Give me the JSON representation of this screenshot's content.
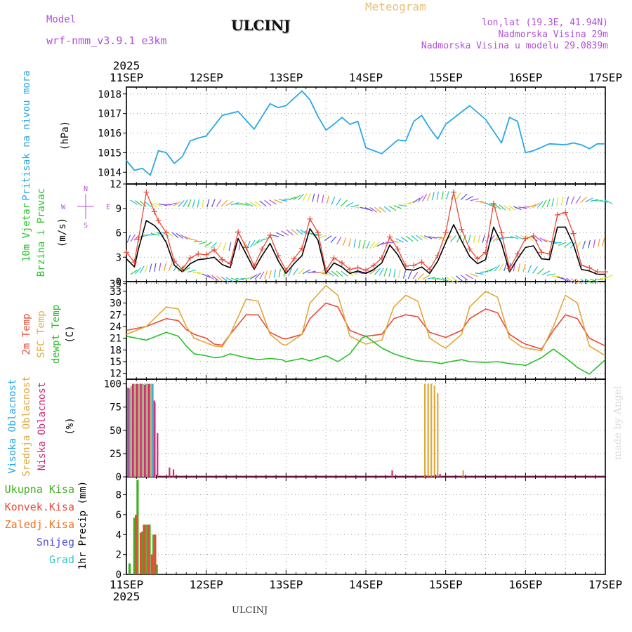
{
  "header": {
    "model_label": "Model",
    "model_name": "wrf-nmm_v3.9.1 e3km",
    "station": "ULCINJ",
    "meteogram": "Meteogram",
    "coords": "lon,lat (19.3E, 41.94N)",
    "elevation": "Nadmorska Visina 29m",
    "model_elevation": "Nadmorska Visina u modelu 29.0839m"
  },
  "credit": "made by Angel",
  "footer_station": "ULCINJ",
  "colors": {
    "pressure": "#29a8e8",
    "temp2m": "#e84a3a",
    "sfc_temp": "#e0a838",
    "dewpoint": "#28c028",
    "wind_speed": "#000000",
    "gust": "#e84a3a",
    "cloud_high": "#29a8e8",
    "cloud_mid": "#e0a838",
    "cloud_low": "#d02878",
    "precip_total": "#40b020",
    "precip_conv": "#e84a3a",
    "precip_frz": "#f07020",
    "snow": "#5050e0",
    "hail": "#30c8c8"
  },
  "chart_data": [
    {
      "type": "line",
      "panel": "pressure",
      "ylabel": [
        "Pritisak na nivou mora",
        "(hPa)"
      ],
      "ylim": [
        1013.4,
        1018.35
      ],
      "yticks": [
        1014,
        1015,
        1016,
        1017,
        1018
      ],
      "x_labels": [
        "11SEP",
        "12SEP",
        "13SEP",
        "14SEP",
        "15SEP",
        "16SEP",
        "17SEP"
      ],
      "year_label": "2025",
      "x_days": [
        0,
        0.1,
        0.2,
        0.3,
        0.4,
        0.5,
        0.6,
        0.7,
        0.8,
        0.9,
        1.0,
        1.2,
        1.4,
        1.6,
        1.8,
        1.9,
        2.0,
        2.2,
        2.3,
        2.4,
        2.5,
        2.6,
        2.7,
        2.8,
        2.9,
        3.0,
        3.2,
        3.4,
        3.5,
        3.6,
        3.7,
        3.8,
        3.9,
        4.0,
        4.3,
        4.5,
        4.7,
        4.8,
        4.9,
        5.0,
        5.1,
        5.3,
        5.5,
        5.6,
        5.7,
        5.8,
        5.9,
        6.0
      ],
      "series": [
        {
          "name": "Pritisak na nivou mora",
          "color_key": "pressure",
          "values": [
            1014.6,
            1014.1,
            1014.2,
            1013.85,
            1015.1,
            1015.0,
            1014.45,
            1014.8,
            1015.6,
            1015.75,
            1015.85,
            1016.9,
            1017.1,
            1016.2,
            1017.5,
            1017.3,
            1017.4,
            1018.15,
            1017.7,
            1016.85,
            1016.15,
            1016.45,
            1016.8,
            1016.45,
            1016.6,
            1015.25,
            1014.95,
            1015.65,
            1015.6,
            1016.6,
            1016.9,
            1016.25,
            1015.7,
            1016.45,
            1017.4,
            1016.7,
            1015.5,
            1016.8,
            1016.6,
            1015.0,
            1015.1,
            1015.45,
            1015.4,
            1015.5,
            1015.4,
            1015.2,
            1015.45,
            1015.45
          ]
        }
      ]
    },
    {
      "type": "line",
      "panel": "wind",
      "ylabel": [
        "10m Vjetar",
        "Brzina i Pravac",
        "(m/s)"
      ],
      "ylim": [
        0,
        12
      ],
      "yticks": [
        0,
        3,
        6,
        9,
        12
      ],
      "direction_legend": [
        "N",
        "W",
        "E",
        "S"
      ],
      "x_days": [
        0,
        0.1,
        0.15,
        0.25,
        0.35,
        0.4,
        0.5,
        0.6,
        0.7,
        0.8,
        0.9,
        1.0,
        1.1,
        1.2,
        1.3,
        1.4,
        1.5,
        1.6,
        1.7,
        1.8,
        1.9,
        2.0,
        2.1,
        2.2,
        2.3,
        2.4,
        2.5,
        2.6,
        2.7,
        2.8,
        2.9,
        3.0,
        3.1,
        3.2,
        3.3,
        3.4,
        3.5,
        3.6,
        3.7,
        3.8,
        3.9,
        4.0,
        4.1,
        4.2,
        4.3,
        4.4,
        4.5,
        4.6,
        4.7,
        4.8,
        4.9,
        5.0,
        5.1,
        5.2,
        5.3,
        5.4,
        5.5,
        5.6,
        5.7,
        5.8,
        5.9,
        6.0
      ],
      "series": [
        {
          "name": "Brzina",
          "color_key": "wind_speed",
          "values": [
            2.8,
            1.8,
            4.0,
            7.5,
            6.9,
            6.4,
            4.8,
            2.0,
            1.2,
            2.2,
            2.7,
            2.8,
            3.0,
            2.1,
            1.7,
            5.3,
            3.4,
            1.5,
            3.2,
            4.7,
            2.6,
            1.0,
            2.2,
            3.2,
            6.5,
            5.1,
            1.0,
            2.3,
            1.8,
            1.0,
            1.3,
            1.0,
            1.5,
            2.3,
            4.5,
            3.3,
            1.5,
            1.4,
            1.8,
            1.0,
            2.5,
            4.8,
            7.0,
            5.0,
            3.1,
            2.2,
            2.7,
            6.7,
            4.7,
            1.2,
            2.8,
            4.2,
            4.4,
            2.8,
            2.7,
            6.7,
            6.7,
            4.6,
            1.5,
            1.3,
            0.9,
            0.9
          ]
        },
        {
          "name": "Udar",
          "color_key": "gust",
          "values": [
            3.6,
            2.4,
            5.2,
            11.0,
            8.6,
            7.5,
            6.0,
            2.5,
            1.5,
            2.9,
            3.4,
            3.3,
            3.9,
            2.7,
            2.2,
            6.1,
            4.2,
            1.9,
            4.0,
            5.7,
            3.2,
            1.4,
            2.8,
            4.1,
            7.7,
            6.0,
            1.4,
            2.9,
            2.3,
            1.5,
            1.7,
            1.4,
            2.0,
            2.9,
            5.5,
            4.0,
            1.9,
            2.0,
            2.4,
            1.5,
            3.2,
            6.0,
            11.0,
            6.4,
            4.0,
            2.8,
            3.6,
            9.6,
            6.0,
            1.6,
            3.4,
            5.3,
            5.6,
            3.6,
            3.4,
            8.2,
            8.5,
            5.9,
            2.0,
            1.7,
            1.2,
            1.2
          ]
        }
      ]
    },
    {
      "type": "line",
      "panel": "temperature",
      "ylabel": [
        "2m Temp",
        "SFC Temp",
        "dewpt Temp",
        "(C)"
      ],
      "ylim": [
        10.5,
        35.5
      ],
      "yticks": [
        12,
        15,
        18,
        21,
        24,
        27,
        30,
        33,
        35
      ],
      "x_days": [
        0,
        0.25,
        0.5,
        0.65,
        0.75,
        0.85,
        1.0,
        1.1,
        1.2,
        1.3,
        1.5,
        1.65,
        1.8,
        1.95,
        2.0,
        2.2,
        2.3,
        2.5,
        2.65,
        2.8,
        2.95,
        3.0,
        3.2,
        3.35,
        3.5,
        3.65,
        3.8,
        3.95,
        4.0,
        4.2,
        4.3,
        4.5,
        4.65,
        4.8,
        4.95,
        5.0,
        5.2,
        5.35,
        5.5,
        5.65,
        5.8,
        6.0
      ],
      "series": [
        {
          "name": "2m Temp",
          "color_key": "temp2m",
          "values": [
            23.0,
            24.0,
            26.0,
            25.5,
            23.2,
            22.0,
            21.0,
            19.5,
            19.2,
            22.0,
            27.0,
            27.0,
            22.5,
            21.0,
            20.8,
            22.0,
            26.0,
            30.0,
            29.0,
            23.0,
            21.8,
            21.5,
            22.0,
            26.0,
            27.0,
            26.5,
            22.5,
            21.5,
            21.2,
            23.0,
            26.0,
            28.5,
            27.5,
            22.0,
            20.0,
            19.5,
            18.2,
            23.0,
            27.0,
            26.0,
            21.0,
            19.0
          ]
        },
        {
          "name": "SFC Temp",
          "color_key": "sfc_temp",
          "values": [
            22.0,
            24.0,
            29.0,
            28.5,
            24.0,
            21.0,
            19.8,
            19.0,
            18.8,
            22.0,
            31.0,
            30.5,
            22.0,
            19.5,
            19.2,
            22.0,
            30.0,
            34.5,
            32.0,
            21.5,
            20.0,
            19.5,
            20.5,
            29.0,
            32.0,
            30.5,
            21.0,
            19.0,
            18.5,
            22.0,
            29.0,
            33.0,
            31.5,
            21.0,
            18.8,
            18.5,
            17.8,
            24.0,
            32.0,
            30.0,
            19.0,
            16.5
          ]
        },
        {
          "name": "dewpt Temp",
          "color_key": "dewpoint",
          "values": [
            21.5,
            20.5,
            22.5,
            21.5,
            19.0,
            17.0,
            16.5,
            16.0,
            16.2,
            17.0,
            16.0,
            15.5,
            15.8,
            15.5,
            15.0,
            15.8,
            15.2,
            16.5,
            15.0,
            17.0,
            21.0,
            21.5,
            18.5,
            17.0,
            16.0,
            15.2,
            15.0,
            14.5,
            14.8,
            15.5,
            15.0,
            14.8,
            15.0,
            14.5,
            14.2,
            14.0,
            16.0,
            18.2,
            16.0,
            13.5,
            11.8,
            15.5
          ]
        }
      ]
    },
    {
      "type": "bar",
      "panel": "cloud",
      "ylabel": [
        "Visoka Oblacnost",
        "Srednja Oblacnost",
        "Niska Oblacnost",
        "(%)"
      ],
      "ylim": [
        0,
        105
      ],
      "yticks": [
        0,
        25,
        50,
        75,
        100
      ],
      "series": [
        {
          "name": "Visoka Oblacnost",
          "color_key": "cloud_high",
          "x": [
            0.04,
            0.09,
            0.14,
            0.19,
            0.24,
            0.29,
            0.33
          ],
          "values": [
            95,
            100,
            100,
            100,
            100,
            100,
            100
          ]
        },
        {
          "name": "Srednja Oblacnost",
          "color_key": "cloud_mid",
          "x": [
            0.06,
            0.11,
            0.16,
            0.21,
            0.26,
            0.31,
            0.36,
            3.74,
            3.78,
            3.82,
            3.86,
            3.9,
            4.22
          ],
          "values": [
            98,
            100,
            100,
            100,
            100,
            100,
            80,
            100,
            100,
            100,
            98,
            90,
            7
          ]
        },
        {
          "name": "Niska Oblacnost",
          "color_key": "cloud_low",
          "x": [
            0.02,
            0.08,
            0.13,
            0.18,
            0.23,
            0.28,
            0.35,
            0.39,
            0.54,
            0.59,
            3.33,
            3.93
          ],
          "values": [
            96,
            100,
            100,
            100,
            99,
            100,
            82,
            47,
            10,
            8,
            7,
            3
          ]
        }
      ]
    },
    {
      "type": "bar",
      "panel": "precip",
      "ylabel": [
        "1hr Precip (mm)"
      ],
      "ylim": [
        0,
        9.8
      ],
      "yticks": [
        0,
        2,
        4,
        6,
        8
      ],
      "legend": [
        "Ukupna Kisa",
        "Konvek.Kisa",
        "Zaledj.Kisa",
        "Snijeg",
        "Grad"
      ],
      "x_labels": [
        "11SEP",
        "12SEP",
        "13SEP",
        "14SEP",
        "15SEP",
        "16SEP",
        "17SEP"
      ],
      "year_label": "2025",
      "series": [
        {
          "name": "Ukupna Kisa",
          "color_key": "precip_total",
          "x": [
            0.04,
            0.1,
            0.14,
            0.2,
            0.24,
            0.29,
            0.34,
            0.38
          ],
          "values": [
            1.1,
            5.7,
            9.5,
            4.3,
            5.0,
            5.0,
            4.0,
            1.0
          ]
        },
        {
          "name": "Konvek.Kisa",
          "color_key": "precip_conv",
          "x": [
            0.12,
            0.18,
            0.22,
            0.27,
            0.32,
            0.36
          ],
          "values": [
            6.0,
            4.2,
            5.0,
            5.0,
            2.0,
            4.0
          ]
        }
      ]
    }
  ]
}
